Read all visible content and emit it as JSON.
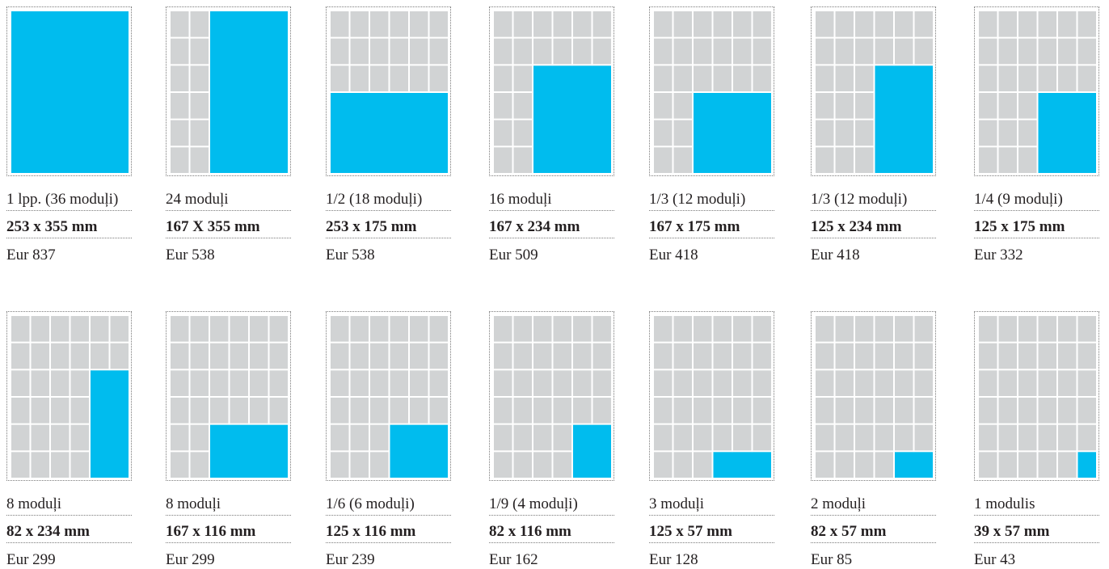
{
  "colors": {
    "module": "#d1d3d4",
    "ad": "#00bcee",
    "border": "#7a7a7a",
    "text": "#231f20"
  },
  "grid": {
    "columns": 6,
    "rows": 6
  },
  "formats": [
    {
      "name": "1 lpp. (36 moduļi)",
      "size": "253 x 355 mm",
      "price": "Eur 837",
      "ad": {
        "col": 0,
        "row": 0,
        "cols": 6,
        "rows": 6
      }
    },
    {
      "name": "24 moduļi",
      "size": "167 X 355 mm",
      "price": "Eur 538",
      "ad": {
        "col": 2,
        "row": 0,
        "cols": 4,
        "rows": 6
      }
    },
    {
      "name": "1/2 (18 moduļi)",
      "size": "253 x 175 mm",
      "price": "Eur 538",
      "ad": {
        "col": 0,
        "row": 3,
        "cols": 6,
        "rows": 3
      }
    },
    {
      "name": "16 moduļi",
      "size": "167 x 234 mm",
      "price": "Eur 509",
      "ad": {
        "col": 2,
        "row": 2,
        "cols": 4,
        "rows": 4
      }
    },
    {
      "name": "1/3 (12 moduļi)",
      "size": "167 x 175 mm",
      "price": "Eur 418",
      "ad": {
        "col": 2,
        "row": 3,
        "cols": 4,
        "rows": 3
      }
    },
    {
      "name": "1/3 (12 moduļi)",
      "size": "125 x 234 mm",
      "price": "Eur 418",
      "ad": {
        "col": 3,
        "row": 2,
        "cols": 3,
        "rows": 4
      }
    },
    {
      "name": "1/4 (9 moduļi)",
      "size": "125 x 175 mm",
      "price": "Eur 332",
      "ad": {
        "col": 3,
        "row": 3,
        "cols": 3,
        "rows": 3
      }
    },
    {
      "name": "8 moduļi",
      "size": "82 x 234 mm",
      "price": "Eur 299",
      "ad": {
        "col": 4,
        "row": 2,
        "cols": 2,
        "rows": 4
      }
    },
    {
      "name": "8 moduļi",
      "size": "167 x 116 mm",
      "price": "Eur 299",
      "ad": {
        "col": 2,
        "row": 4,
        "cols": 4,
        "rows": 2
      }
    },
    {
      "name": "1/6 (6 moduļi)",
      "size": "125 x 116 mm",
      "price": "Eur 239",
      "ad": {
        "col": 3,
        "row": 4,
        "cols": 3,
        "rows": 2
      }
    },
    {
      "name": "1/9 (4 moduļi)",
      "size": "82 x 116 mm",
      "price": "Eur 162",
      "ad": {
        "col": 4,
        "row": 4,
        "cols": 2,
        "rows": 2
      }
    },
    {
      "name": "3 moduļi",
      "size": "125 x 57 mm",
      "price": "Eur 128",
      "ad": {
        "col": 3,
        "row": 5,
        "cols": 3,
        "rows": 1
      }
    },
    {
      "name": "2 moduļi",
      "size": "82 x 57 mm",
      "price": "Eur 85",
      "ad": {
        "col": 4,
        "row": 5,
        "cols": 2,
        "rows": 1
      }
    },
    {
      "name": "1 modulis",
      "size": "39 x 57 mm",
      "price": "Eur 43",
      "ad": {
        "col": 5,
        "row": 5,
        "cols": 1,
        "rows": 1
      }
    }
  ]
}
